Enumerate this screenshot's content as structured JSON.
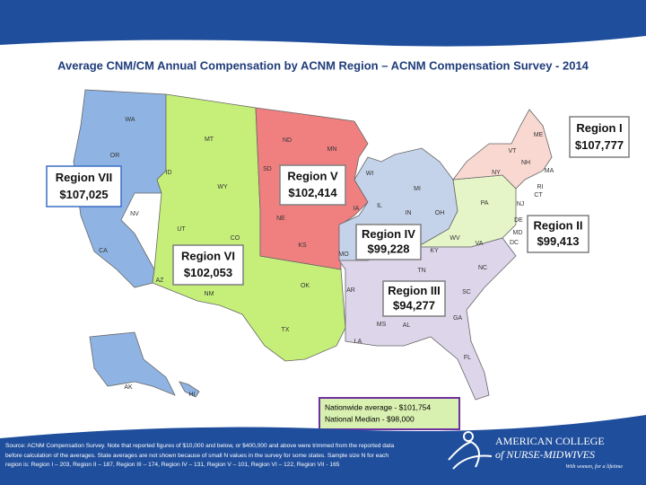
{
  "header": {
    "title": "Average CNM/CM Annual Compensation by ACNM Region – ACNM Compensation Survey - 2014"
  },
  "regions": [
    {
      "name": "Region I",
      "value": "$107,777"
    },
    {
      "name": "Region II",
      "value": "$99,413"
    },
    {
      "name": "Region III",
      "value": "$94,277"
    },
    {
      "name": "Region IV",
      "value": "$99,228"
    },
    {
      "name": "Region V",
      "value": "$102,414"
    },
    {
      "name": "Region VI",
      "value": "$102,053"
    },
    {
      "name": "Region VII",
      "value": "$107,025"
    }
  ],
  "states": [
    "WA",
    "OR",
    "CA",
    "NV",
    "ID",
    "MT",
    "WY",
    "UT",
    "CO",
    "AZ",
    "NM",
    "TX",
    "ND",
    "SD",
    "NE",
    "KS",
    "OK",
    "MN",
    "IA",
    "WI",
    "IL",
    "IN",
    "MI",
    "OH",
    "MO",
    "AR",
    "KY",
    "TN",
    "MS",
    "AL",
    "LA",
    "GA",
    "FL",
    "SC",
    "NC",
    "VA",
    "WV",
    "PA",
    "NY",
    "VT",
    "NH",
    "ME",
    "MA",
    "RI",
    "CT",
    "NJ",
    "DE",
    "MD",
    "DC",
    "AK",
    "HI"
  ],
  "summary": {
    "average": "Nationwide average - $101,754",
    "median": "National Median - $98,000"
  },
  "footer": {
    "source": "Source: ACNM Compensation Survey. Note that reported figures of $10,000 and below, or $400,000 and above were trimmed from the reported data before calculation of the averages. State averages are not shown because of small N values in the survey for some states. Sample size N for each region is: Region I – 203, Region II – 187, Region III – 174, Region IV – 131, Region V – 101, Region VI – 122, Region VII - 165",
    "logo_line1": "AMERICAN COLLEGE",
    "logo_line2": "of NURSE-MIDWIVES",
    "tagline": "With women, for a lifetime"
  }
}
